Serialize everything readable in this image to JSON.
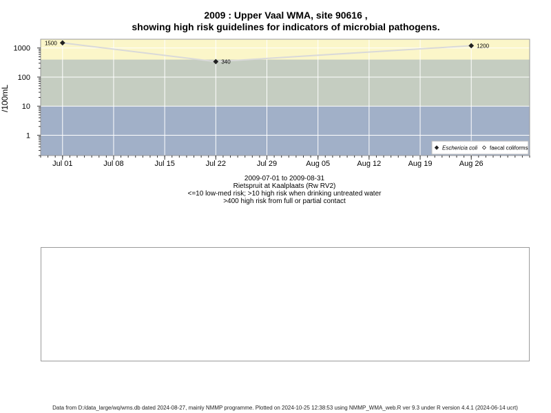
{
  "chart_data": {
    "type": "line",
    "title": "2009 : Upper Vaal WMA, site 90616 ,",
    "subtitle": "showing high risk guidelines for indicators of microbial pathogens.",
    "ylabel": "/100mL",
    "y_scale": "log",
    "ylim": [
      0.2,
      2000
    ],
    "xlim": [
      "2009-06-28",
      "2009-09-03"
    ],
    "grid": true,
    "x_ticks": [
      {
        "date": "2009-07-01",
        "label": "Jul 01"
      },
      {
        "date": "2009-07-08",
        "label": "Jul 08"
      },
      {
        "date": "2009-07-15",
        "label": "Jul 15"
      },
      {
        "date": "2009-07-22",
        "label": "Jul 22"
      },
      {
        "date": "2009-07-29",
        "label": "Jul 29"
      },
      {
        "date": "2009-08-05",
        "label": "Aug 05"
      },
      {
        "date": "2009-08-12",
        "label": "Aug 12"
      },
      {
        "date": "2009-08-19",
        "label": "Aug 19"
      },
      {
        "date": "2009-08-26",
        "label": "Aug 26"
      }
    ],
    "y_ticks": [
      {
        "value": 1,
        "label": "1"
      },
      {
        "value": 10,
        "label": "10"
      },
      {
        "value": 100,
        "label": "100"
      },
      {
        "value": 1000,
        "label": "1000"
      }
    ],
    "bands": [
      {
        "from": 0.2,
        "to": 10,
        "color": "#a1b0c8"
      },
      {
        "from": 10,
        "to": 400,
        "color": "#c5cdc1"
      },
      {
        "from": 400,
        "to": 2000,
        "color": "#fbf6c9"
      }
    ],
    "series": [
      {
        "name": "Eschericia coli",
        "marker": "filled-diamond",
        "line_color": "#d9d9d9",
        "points": [
          {
            "x": "2009-07-01",
            "y": 1500,
            "label": "1500"
          },
          {
            "x": "2009-07-22",
            "y": 340,
            "label": "340"
          },
          {
            "x": "2009-08-26",
            "y": 1200,
            "label": "1200"
          }
        ]
      },
      {
        "name": "faecal coliforms",
        "marker": "open-diamond",
        "points": []
      }
    ],
    "legend_position": "bottom-right",
    "colors": {
      "tick_line": "#333333",
      "grid": "#ffffff",
      "marker": "#222222"
    }
  },
  "captions": {
    "period": "2009-07-01 to 2009-08-31",
    "site": "Rietspruit at Kaalplaats (Rw RV2)",
    "risk_note1": "<=10 low-med risk; >10 high risk when drinking untreated water",
    "risk_note2": ">400 high risk from full or partial contact"
  },
  "footer": "Data from D:/data_large/wq/wms.db dated 2024-08-27, mainly NMMP programme. Plotted on 2024-10-25 12:38:53 using NMMP_WMA_web.R ver 9.3 under R version 4.4.1 (2024-06-14 ucrt)"
}
